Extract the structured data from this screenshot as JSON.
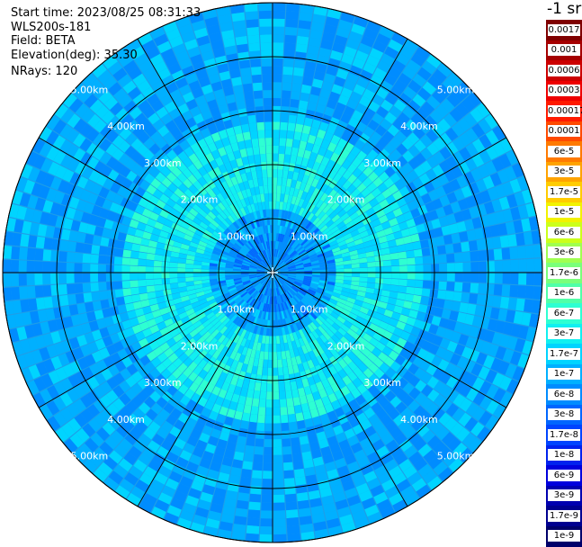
{
  "info": {
    "start_time": "Start time: 2023/08/25 08:31:33",
    "instrument": "WLS200s-181",
    "field": "Field: BETA",
    "elevation": "Elevation(deg): 35.30",
    "nrays": "NRays: 120"
  },
  "colorbar": {
    "unit": "-1 sr",
    "levels": [
      {
        "label": "0.0017",
        "color": "#7f0000"
      },
      {
        "label": "0.001",
        "color": "#a50000"
      },
      {
        "label": "0.0006",
        "color": "#cc0000"
      },
      {
        "label": "0.0003",
        "color": "#ee0000"
      },
      {
        "label": "0.00017",
        "color": "#ff1a00"
      },
      {
        "label": "0.0001",
        "color": "#ff4a00"
      },
      {
        "label": "6e-5",
        "color": "#ff7a00"
      },
      {
        "label": "3e-5",
        "color": "#ffa300"
      },
      {
        "label": "1.7e-5",
        "color": "#ffcc00"
      },
      {
        "label": "1e-5",
        "color": "#f2f200"
      },
      {
        "label": "6e-6",
        "color": "#ccff1a"
      },
      {
        "label": "3e-6",
        "color": "#a0ff50"
      },
      {
        "label": "1.7e-6",
        "color": "#7aff7a"
      },
      {
        "label": "1e-6",
        "color": "#50ffa8"
      },
      {
        "label": "6e-7",
        "color": "#2effd2"
      },
      {
        "label": "3e-7",
        "color": "#10f0f0"
      },
      {
        "label": "1.7e-7",
        "color": "#00d4ff"
      },
      {
        "label": "1e-7",
        "color": "#00b0ff"
      },
      {
        "label": "6e-8",
        "color": "#008cff"
      },
      {
        "label": "3e-8",
        "color": "#0066ff"
      },
      {
        "label": "1.7e-8",
        "color": "#0044ff"
      },
      {
        "label": "1e-8",
        "color": "#0022ee"
      },
      {
        "label": "6e-9",
        "color": "#0000dd"
      },
      {
        "label": "3e-9",
        "color": "#0000b0"
      },
      {
        "label": "1.7e-9",
        "color": "#000090"
      },
      {
        "label": "1e-9",
        "color": "#00006a"
      }
    ]
  },
  "ranges": [
    {
      "km": 1,
      "label": "1.00km"
    },
    {
      "km": 2,
      "label": "2.00km"
    },
    {
      "km": 3,
      "label": "3.00km"
    },
    {
      "km": 4,
      "label": "4.00km"
    },
    {
      "km": 5,
      "label": "5.00km"
    }
  ],
  "map": {
    "nrays": 120,
    "max_range_km": 5.0,
    "spoke_step_deg": 30,
    "background_color": "#1e9ee8"
  }
}
